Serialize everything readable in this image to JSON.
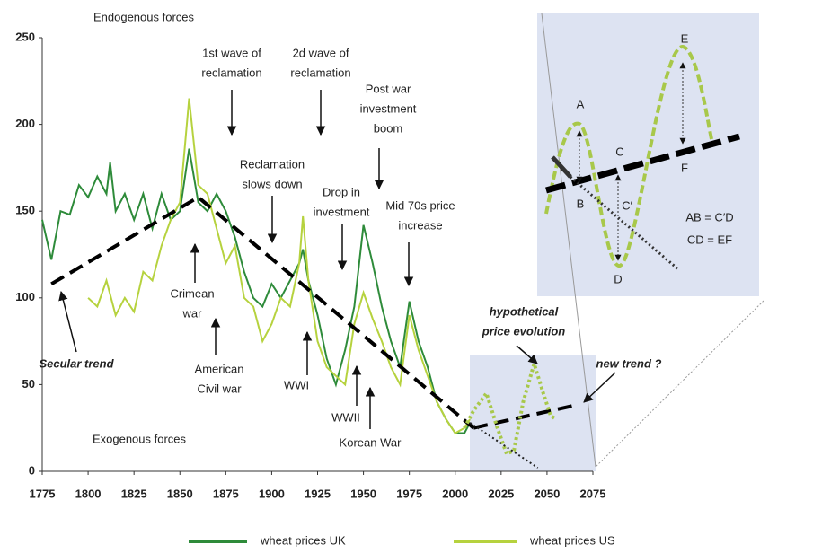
{
  "chart_data": {
    "type": "line",
    "xlim": [
      1775,
      2075
    ],
    "ylim": [
      0,
      250
    ],
    "xticks": [
      1775,
      1800,
      1825,
      1850,
      1875,
      1900,
      1925,
      1950,
      1975,
      2000,
      2025,
      2050,
      2075
    ],
    "yticks": [
      0,
      50,
      100,
      150,
      200,
      250
    ],
    "grid": false,
    "series": [
      {
        "name": "wheat prices UK",
        "color": "#2e8b3a",
        "x": [
          1775,
          1780,
          1785,
          1790,
          1795,
          1800,
          1805,
          1810,
          1812,
          1815,
          1820,
          1825,
          1830,
          1835,
          1840,
          1845,
          1850,
          1855,
          1860,
          1865,
          1870,
          1875,
          1880,
          1885,
          1890,
          1895,
          1900,
          1905,
          1910,
          1915,
          1917,
          1920,
          1925,
          1930,
          1935,
          1940,
          1945,
          1950,
          1955,
          1960,
          1965,
          1970,
          1975,
          1980,
          1985,
          1990,
          1995,
          2000,
          2005,
          2008
        ],
        "values": [
          145,
          122,
          150,
          148,
          165,
          158,
          170,
          160,
          178,
          150,
          160,
          145,
          160,
          140,
          160,
          145,
          150,
          186,
          155,
          150,
          160,
          150,
          135,
          115,
          100,
          95,
          108,
          100,
          110,
          120,
          128,
          110,
          90,
          65,
          50,
          70,
          95,
          142,
          120,
          95,
          75,
          60,
          98,
          75,
          60,
          40,
          30,
          22,
          22,
          28
        ]
      },
      {
        "name": "wheat prices US",
        "color": "#b6d23e",
        "x": [
          1800,
          1805,
          1810,
          1815,
          1820,
          1825,
          1830,
          1835,
          1840,
          1845,
          1850,
          1855,
          1860,
          1865,
          1870,
          1875,
          1880,
          1885,
          1890,
          1895,
          1900,
          1905,
          1910,
          1915,
          1917,
          1920,
          1925,
          1930,
          1935,
          1940,
          1945,
          1950,
          1955,
          1960,
          1965,
          1970,
          1975,
          1980,
          1985,
          1990,
          1995,
          2000,
          2005,
          2008
        ],
        "values": [
          100,
          95,
          110,
          90,
          100,
          92,
          115,
          110,
          130,
          145,
          155,
          215,
          165,
          160,
          140,
          120,
          130,
          100,
          95,
          75,
          85,
          100,
          95,
          120,
          147,
          110,
          75,
          60,
          55,
          50,
          85,
          103,
          88,
          75,
          60,
          50,
          90,
          70,
          55,
          40,
          30,
          22,
          25,
          30
        ]
      }
    ],
    "trends": [
      {
        "label": [
          "Secular trend"
        ],
        "style": "dashed",
        "x": [
          1780,
          1860,
          2010
        ],
        "values": [
          108,
          158,
          25
        ]
      },
      {
        "label": [
          "new trend ?"
        ],
        "style": "dashed",
        "x": [
          2010,
          2065
        ],
        "values": [
          25,
          38
        ]
      },
      {
        "label": [
          "hypothetical",
          "price evolution"
        ],
        "style": "green-dotted",
        "x": [
          2005,
          2010,
          2017,
          2023,
          2028,
          2032,
          2037,
          2043,
          2048,
          2052,
          2055
        ],
        "values": [
          25,
          35,
          45,
          25,
          10,
          12,
          40,
          62,
          45,
          32,
          30
        ]
      },
      {
        "style": "dotted",
        "x": [
          2008,
          2045
        ],
        "values": [
          28,
          2
        ]
      }
    ],
    "notes": [
      [
        "Endogenous forces"
      ],
      [
        "Exogenous forces"
      ],
      [
        "1st wave of",
        "reclamation"
      ],
      [
        "2d wave of",
        "reclamation"
      ],
      [
        "Post war",
        "investment",
        "boom"
      ],
      [
        "Reclamation",
        "slows down"
      ],
      [
        "Drop in",
        "investment"
      ],
      [
        "Mid 70s price",
        "increase"
      ],
      [
        "Crimean",
        "war"
      ],
      [
        "American",
        "Civil war"
      ],
      [
        "WWI"
      ],
      [
        "WWII"
      ],
      [
        "Korean War"
      ]
    ],
    "inset": {
      "points": [
        "A",
        "B",
        "C",
        "C′",
        "D",
        "E",
        "F"
      ],
      "equations": [
        "AB = C′D",
        "CD = EF"
      ]
    }
  }
}
